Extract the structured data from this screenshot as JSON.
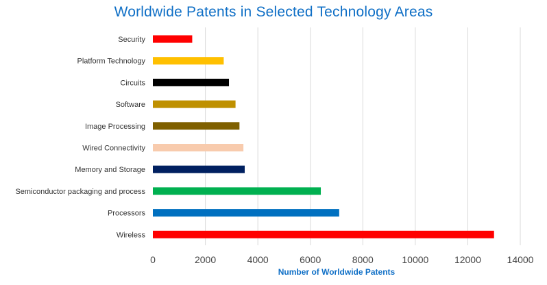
{
  "chart_data": {
    "type": "bar",
    "orientation": "horizontal",
    "title": "Worldwide Patents in Selected Technology Areas",
    "xlabel": "Number of Worldwide Patents",
    "ylabel": "",
    "xlim": [
      0,
      14000
    ],
    "xticks": [
      0,
      2000,
      4000,
      6000,
      8000,
      10000,
      12000,
      14000
    ],
    "grid": "vertical",
    "legend": "none",
    "categories": [
      "Security",
      "Platform Technology",
      "Circuits",
      "Software",
      "Image Processing",
      "Wired Connectivity",
      "Memory and Storage",
      "Semiconductor packaging and process",
      "Processors",
      "Wireless"
    ],
    "values": [
      1500,
      2700,
      2900,
      3150,
      3300,
      3450,
      3500,
      6400,
      7100,
      13000
    ],
    "colors": [
      "#ff0000",
      "#ffc000",
      "#000000",
      "#bf9000",
      "#7f6000",
      "#f8cbad",
      "#002060",
      "#00b050",
      "#0070c0",
      "#ff0000"
    ]
  }
}
